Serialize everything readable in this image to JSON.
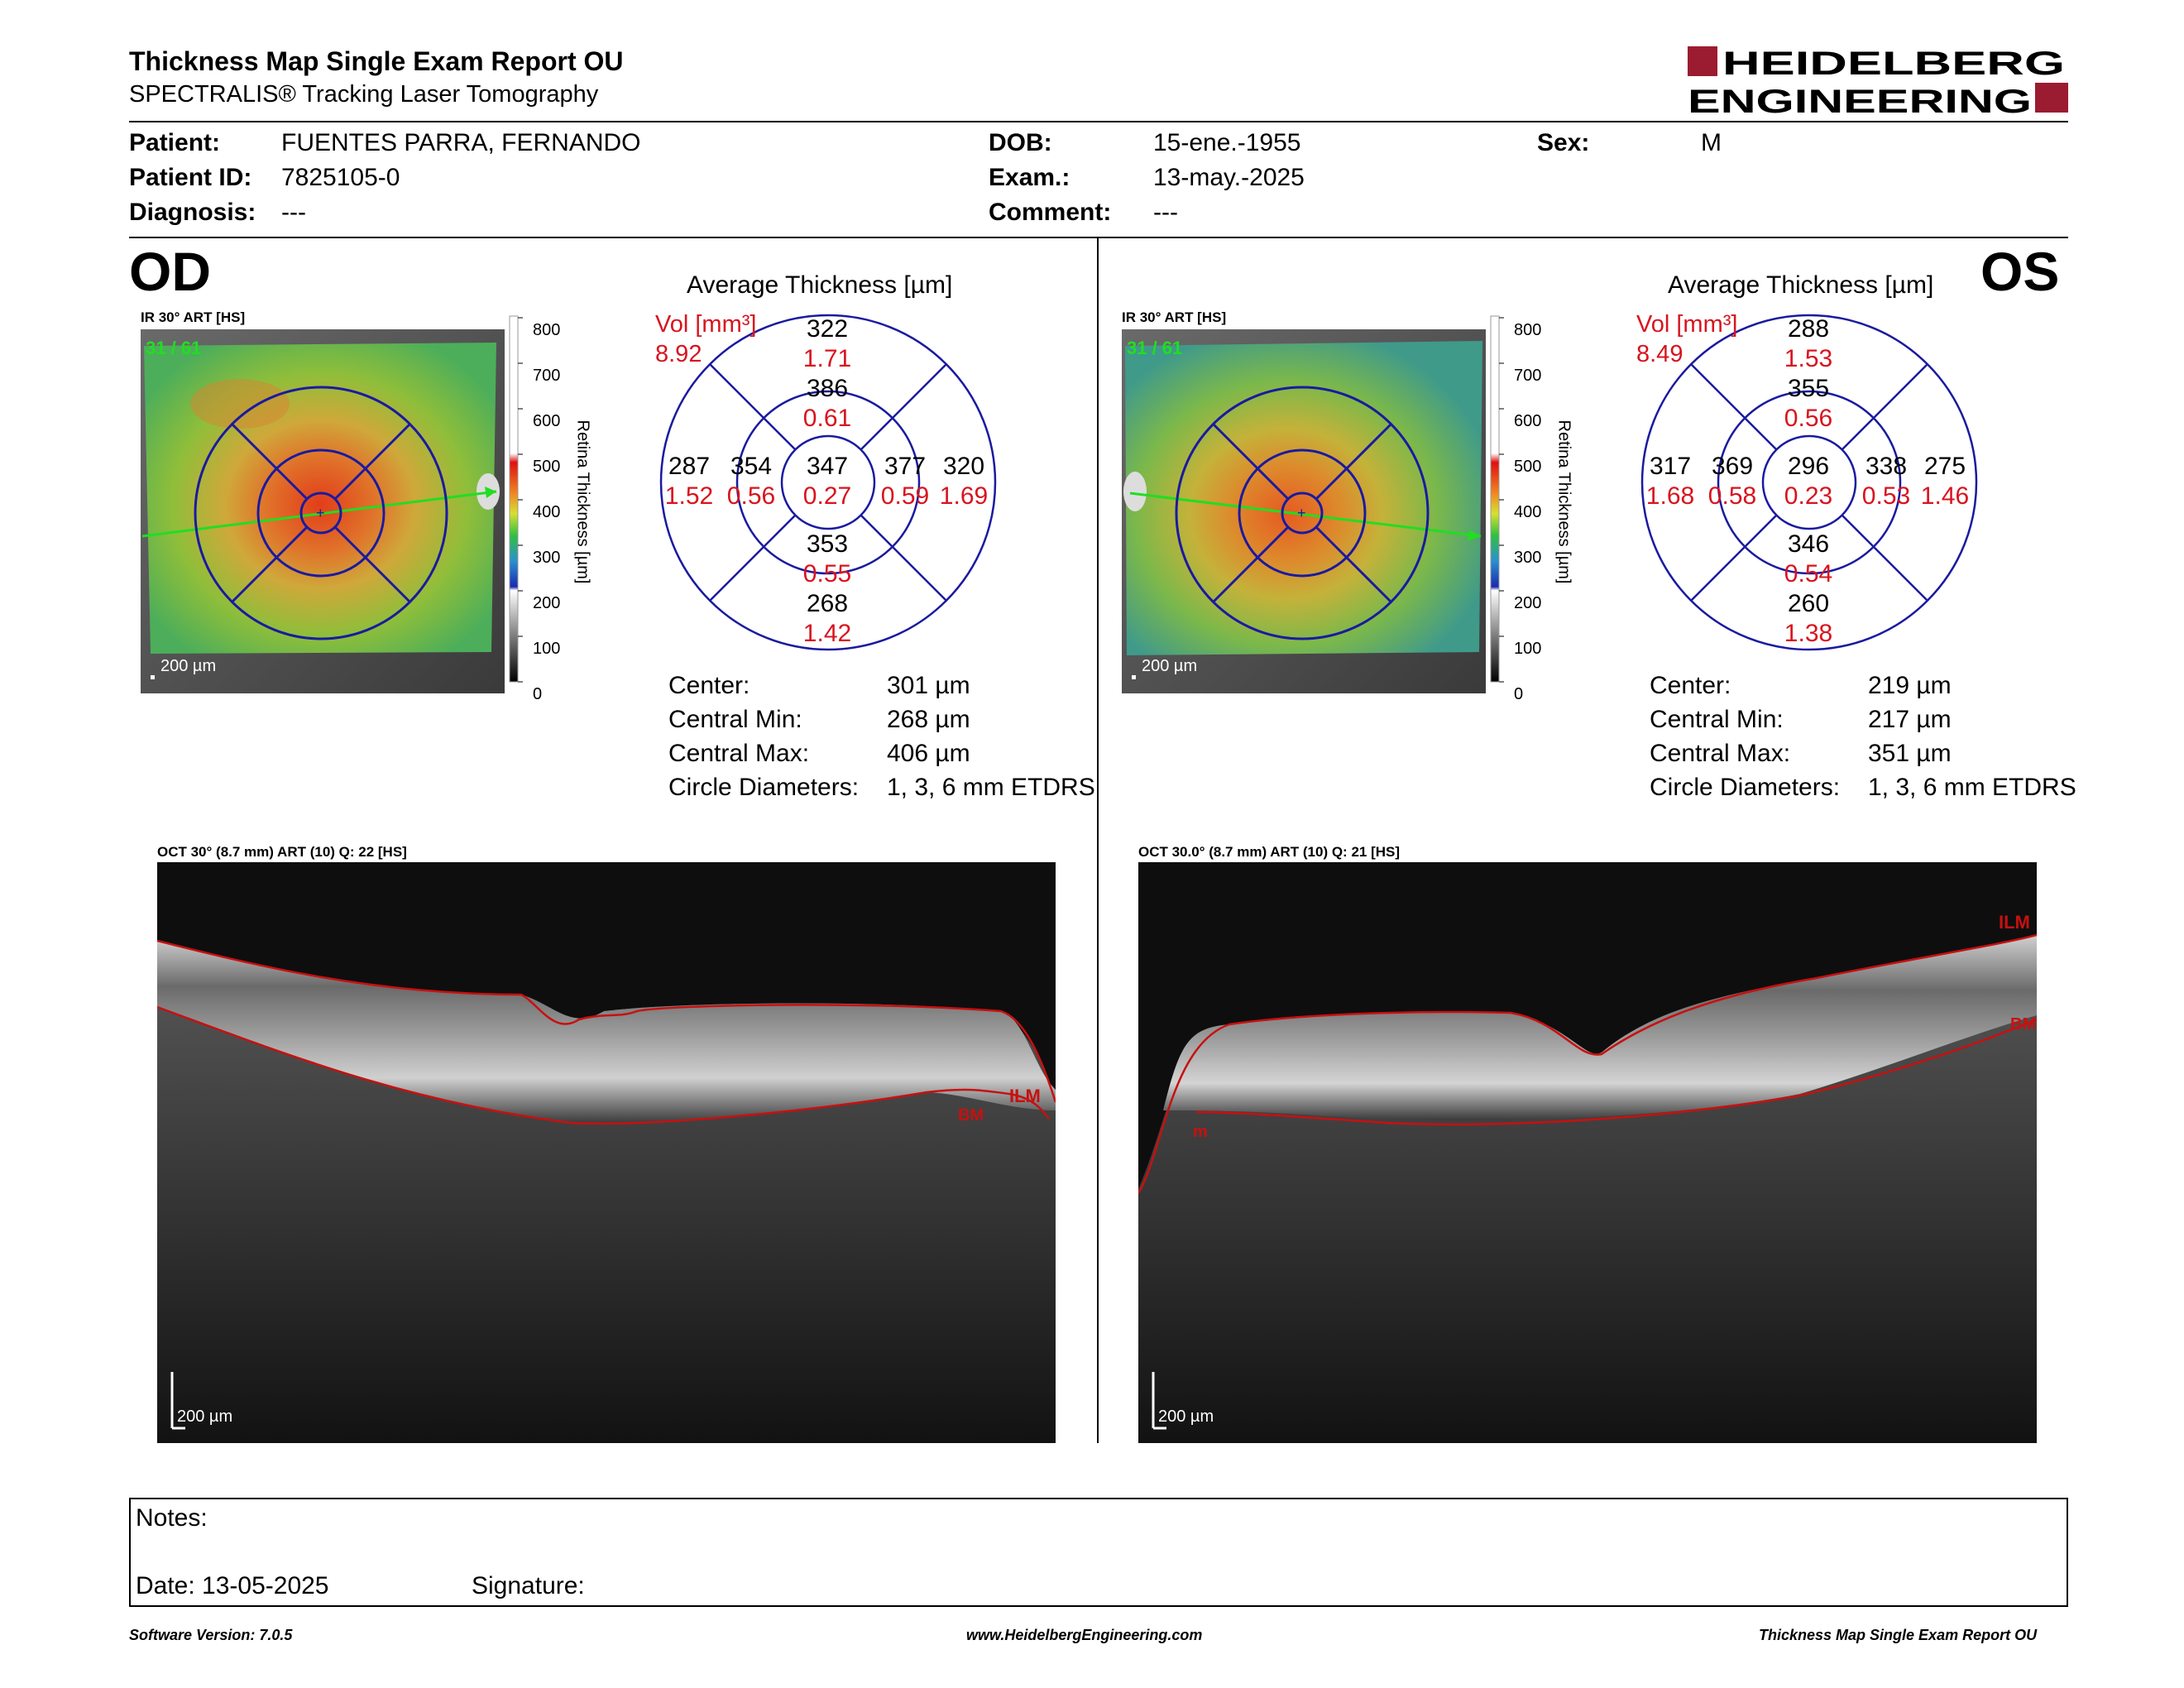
{
  "header": {
    "title": "Thickness Map Single Exam Report OU",
    "subtitle": "SPECTRALIS® Tracking Laser Tomography",
    "logo_line1": "HEIDELBERG",
    "logo_line2": "ENGINEERING",
    "logo_color": "#9b1b30"
  },
  "patient": {
    "patient_label": "Patient:",
    "patient_value": "FUENTES PARRA, FERNANDO",
    "id_label": "Patient ID:",
    "id_value": "7825105-0",
    "diagnosis_label": "Diagnosis:",
    "diagnosis_value": "---",
    "dob_label": "DOB:",
    "dob_value": "15-ene.-1955",
    "exam_label": "Exam.:",
    "exam_value": "13-may.-2025",
    "comment_label": "Comment:",
    "comment_value": "---",
    "sex_label": "Sex:",
    "sex_value": "M"
  },
  "od": {
    "eye": "OD",
    "ir_label": "IR 30° ART [HS]",
    "ir_counter": "31 / 61",
    "scale_label": "200 µm",
    "colorbar_ticks": [
      "800",
      "700",
      "600",
      "500",
      "400",
      "300",
      "200",
      "100",
      "0"
    ],
    "colorbar_title": "Retina Thickness [µm]",
    "avg_title": "Average Thickness [µm]",
    "vol_label": "Vol [mm³]",
    "vol_value": "8.92",
    "sectors": {
      "center": {
        "thk": "347",
        "vol": "0.27"
      },
      "inner_sup": {
        "thk": "386",
        "vol": "0.61"
      },
      "inner_inf": {
        "thk": "353",
        "vol": "0.55"
      },
      "inner_left": {
        "thk": "354",
        "vol": "0.56"
      },
      "inner_right": {
        "thk": "377",
        "vol": "0.59"
      },
      "outer_sup": {
        "thk": "322",
        "vol": "1.71"
      },
      "outer_inf": {
        "thk": "268",
        "vol": "1.42"
      },
      "outer_left": {
        "thk": "287",
        "vol": "1.52"
      },
      "outer_right": {
        "thk": "320",
        "vol": "1.69"
      }
    },
    "stats": [
      {
        "label": "Center:",
        "value": "301 µm"
      },
      {
        "label": "Central Min:",
        "value": "268 µm"
      },
      {
        "label": "Central Max:",
        "value": "406 µm"
      },
      {
        "label": "Circle Diameters:",
        "value": "1, 3, 6 mm ETDRS"
      }
    ],
    "oct_label": "OCT 30° (8.7 mm) ART (10) Q: 22 [HS]",
    "oct_scale": "200 µm",
    "ilm_label": "ILM",
    "bm_label": "BM"
  },
  "os": {
    "eye": "OS",
    "ir_label": "IR 30° ART [HS]",
    "ir_counter": "31 / 61",
    "scale_label": "200 µm",
    "colorbar_ticks": [
      "800",
      "700",
      "600",
      "500",
      "400",
      "300",
      "200",
      "100",
      "0"
    ],
    "colorbar_title": "Retina Thickness [µm]",
    "avg_title": "Average Thickness [µm]",
    "vol_label": "Vol [mm³]",
    "vol_value": "8.49",
    "sectors": {
      "center": {
        "thk": "296",
        "vol": "0.23"
      },
      "inner_sup": {
        "thk": "355",
        "vol": "0.56"
      },
      "inner_inf": {
        "thk": "346",
        "vol": "0.54"
      },
      "inner_left": {
        "thk": "369",
        "vol": "0.58"
      },
      "inner_right": {
        "thk": "338",
        "vol": "0.53"
      },
      "outer_sup": {
        "thk": "288",
        "vol": "1.53"
      },
      "outer_inf": {
        "thk": "260",
        "vol": "1.38"
      },
      "outer_left": {
        "thk": "317",
        "vol": "1.68"
      },
      "outer_right": {
        "thk": "275",
        "vol": "1.46"
      }
    },
    "stats": [
      {
        "label": "Center:",
        "value": "219 µm"
      },
      {
        "label": "Central Min:",
        "value": "217 µm"
      },
      {
        "label": "Central Max:",
        "value": "351 µm"
      },
      {
        "label": "Circle Diameters:",
        "value": "1, 3, 6 mm ETDRS"
      }
    ],
    "oct_label": "OCT 30.0° (8.7 mm) ART (10) Q: 21 [HS]",
    "oct_scale": "200 µm",
    "ilm_label": "ILM",
    "bm_label": "BM",
    "extra_label": "m"
  },
  "notes": {
    "notes_label": "Notes:",
    "date_label": "Date: 13-05-2025",
    "signature_label": "Signature:"
  },
  "footer": {
    "software": "Software Version: 7.0.5",
    "website": "www.HeidelbergEngineering.com",
    "report": "Thickness Map Single Exam Report OU"
  },
  "colors": {
    "circle_blue": "#1a1aa0",
    "value_red": "#d8141e",
    "segmentation_red": "#c81010",
    "scan_green": "#22dd22"
  }
}
